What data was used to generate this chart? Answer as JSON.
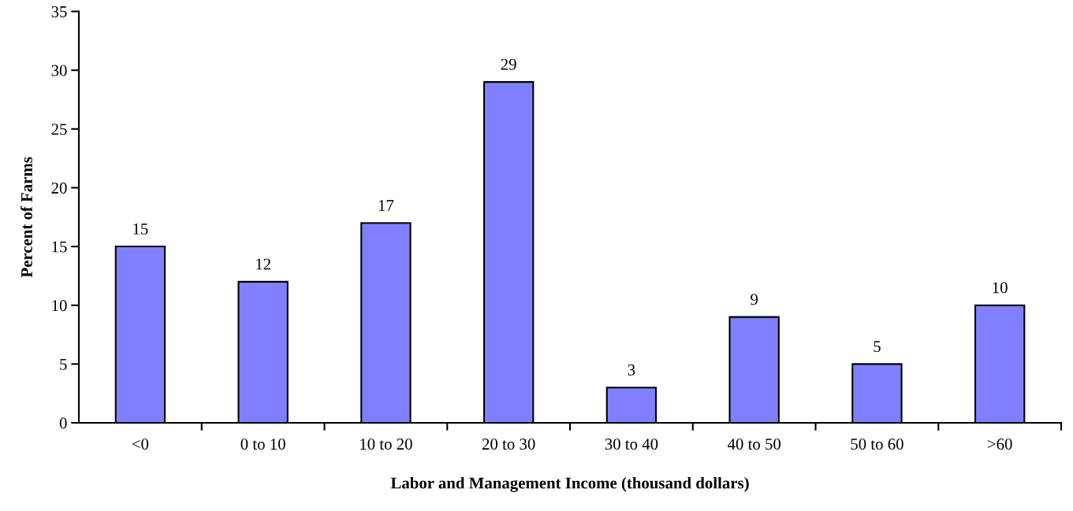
{
  "chart_data": {
    "type": "bar",
    "xlabel": "Labor and Management Income (thousand dollars)",
    "ylabel": "Percent of Farms",
    "categories": [
      "<0",
      "0 to 10",
      "10 to 20",
      "20 to 30",
      "30 to 40",
      "40 to 50",
      "50 to 60",
      ">60"
    ],
    "values": [
      15,
      12,
      17,
      29,
      3,
      9,
      5,
      10
    ],
    "color": "#8080ff",
    "ylim": [
      0,
      35
    ],
    "yticks": [
      0,
      5,
      10,
      15,
      20,
      25,
      30,
      35
    ],
    "grid": false,
    "data_labels": true
  }
}
